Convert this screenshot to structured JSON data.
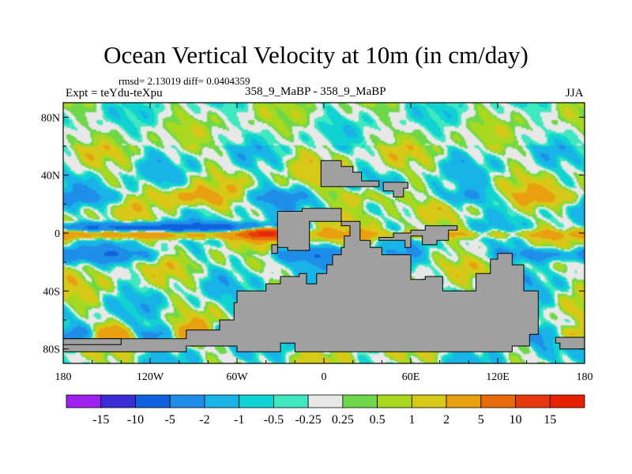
{
  "header": {
    "title": "Ocean Vertical Velocity at 10m (in cm/day)",
    "stats": "rmsd= 2.13019 diff= 0.0404359",
    "expt": "Expt = teYdu-teXpu",
    "runs": "358_9_MaBP - 358_9_MaBP",
    "season": "JJA"
  },
  "chart_data": {
    "type": "heatmap",
    "title": "Ocean Vertical Velocity at 10m (in cm/day)",
    "subtitle": "358_9_MaBP - 358_9_MaBP",
    "xlabel": "",
    "ylabel": "",
    "xlim": [
      -180,
      180
    ],
    "ylim": [
      -90,
      90
    ],
    "x_ticks": [
      {
        "value": -180,
        "label": "180"
      },
      {
        "value": -120,
        "label": "120W"
      },
      {
        "value": -60,
        "label": "60W"
      },
      {
        "value": 0,
        "label": "0"
      },
      {
        "value": 60,
        "label": "60E"
      },
      {
        "value": 120,
        "label": "120E"
      },
      {
        "value": 180,
        "label": "180"
      }
    ],
    "y_ticks": [
      {
        "value": 80,
        "label": "80N"
      },
      {
        "value": 40,
        "label": "40N"
      },
      {
        "value": 0,
        "label": "0"
      },
      {
        "value": -40,
        "label": "40S"
      },
      {
        "value": -80,
        "label": "80S"
      }
    ],
    "colorbar": {
      "levels": [
        "-15",
        "-10",
        "-5",
        "-2",
        "-1",
        "-0.5",
        "-0.25",
        "0.25",
        "0.5",
        "1",
        "2",
        "5",
        "10",
        "15"
      ],
      "colors": [
        "#a020f0",
        "#3a2dd8",
        "#1060e0",
        "#1e8ee8",
        "#18b4e8",
        "#10d2d2",
        "#40e8c0",
        "#e8e8e8",
        "#6ed84a",
        "#a8d820",
        "#d8c818",
        "#e8a010",
        "#e86a0a",
        "#e83810",
        "#e82200"
      ]
    },
    "land_color": "#a0a0a0"
  }
}
